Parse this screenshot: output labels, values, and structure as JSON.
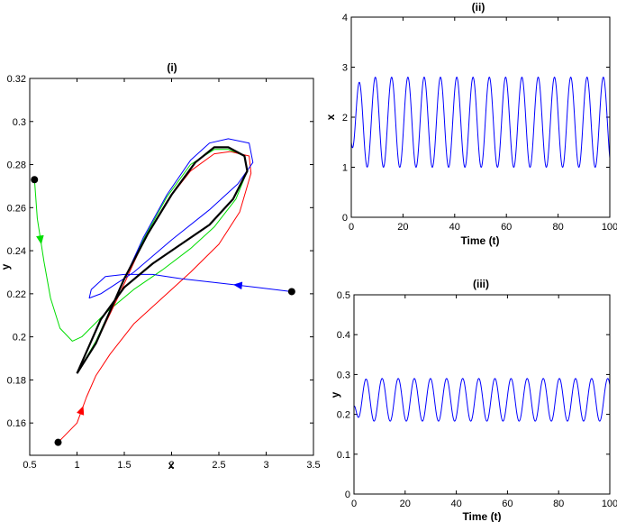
{
  "chart_data": [
    {
      "id": "i",
      "type": "line",
      "title": "(i)",
      "xlabel": "x",
      "ylabel": "y",
      "xlim": [
        0.5,
        3.5
      ],
      "ylim": [
        0.145,
        0.32
      ],
      "xticks": [
        "0.5",
        "1",
        "1.5",
        "2",
        "2.5",
        "3",
        "3.5"
      ],
      "yticks": [
        "0.16",
        "0.18",
        "0.2",
        "0.22",
        "0.24",
        "0.26",
        "0.28",
        "0.3",
        "0.32"
      ],
      "limit_cycle": {
        "color": "#000000",
        "points": [
          [
            1.0,
            0.183
          ],
          [
            1.25,
            0.208
          ],
          [
            1.5,
            0.223
          ],
          [
            1.8,
            0.234
          ],
          [
            2.1,
            0.243
          ],
          [
            2.4,
            0.252
          ],
          [
            2.65,
            0.264
          ],
          [
            2.8,
            0.277
          ],
          [
            2.77,
            0.284
          ],
          [
            2.6,
            0.288
          ],
          [
            2.45,
            0.288
          ],
          [
            2.25,
            0.281
          ],
          [
            2.0,
            0.266
          ],
          [
            1.75,
            0.248
          ],
          [
            1.5,
            0.227
          ],
          [
            1.2,
            0.197
          ],
          [
            1.0,
            0.183
          ]
        ]
      },
      "series": [
        {
          "color": "#00dd00",
          "start": [
            0.55,
            0.273
          ],
          "points": [
            [
              0.55,
              0.273
            ],
            [
              0.58,
              0.255
            ],
            [
              0.65,
              0.235
            ],
            [
              0.72,
              0.218
            ],
            [
              0.82,
              0.204
            ],
            [
              0.95,
              0.198
            ],
            [
              1.05,
              0.2
            ],
            [
              1.3,
              0.211
            ],
            [
              1.6,
              0.222
            ],
            [
              1.9,
              0.231
            ],
            [
              2.2,
              0.241
            ],
            [
              2.45,
              0.251
            ],
            [
              2.68,
              0.264
            ],
            [
              2.8,
              0.277
            ],
            [
              2.77,
              0.284
            ],
            [
              2.6,
              0.287
            ],
            [
              2.45,
              0.287
            ],
            [
              2.2,
              0.28
            ],
            [
              1.95,
              0.265
            ],
            [
              1.7,
              0.245
            ],
            [
              1.45,
              0.222
            ],
            [
              1.2,
              0.198
            ],
            [
              1.0,
              0.183
            ]
          ]
        },
        {
          "color": "#ff0000",
          "start": [
            0.8,
            0.151
          ],
          "points": [
            [
              0.8,
              0.151
            ],
            [
              1.0,
              0.16
            ],
            [
              1.1,
              0.172
            ],
            [
              1.2,
              0.182
            ],
            [
              1.35,
              0.192
            ],
            [
              1.6,
              0.206
            ],
            [
              1.9,
              0.218
            ],
            [
              2.2,
              0.23
            ],
            [
              2.5,
              0.243
            ],
            [
              2.72,
              0.258
            ],
            [
              2.84,
              0.276
            ],
            [
              2.82,
              0.284
            ],
            [
              2.62,
              0.286
            ],
            [
              2.45,
              0.285
            ],
            [
              2.2,
              0.277
            ],
            [
              1.95,
              0.263
            ],
            [
              1.7,
              0.244
            ],
            [
              1.45,
              0.22
            ],
            [
              1.2,
              0.197
            ],
            [
              1.0,
              0.183
            ]
          ]
        },
        {
          "color": "#0000ff",
          "start": [
            3.27,
            0.221
          ],
          "points": [
            [
              3.27,
              0.221
            ],
            [
              2.9,
              0.223
            ],
            [
              2.5,
              0.225
            ],
            [
              2.1,
              0.227
            ],
            [
              1.8,
              0.229
            ],
            [
              1.5,
              0.229
            ],
            [
              1.3,
              0.228
            ],
            [
              1.15,
              0.222
            ],
            [
              1.13,
              0.218
            ],
            [
              1.25,
              0.22
            ],
            [
              1.6,
              0.23
            ],
            [
              2.0,
              0.245
            ],
            [
              2.4,
              0.259
            ],
            [
              2.7,
              0.271
            ],
            [
              2.86,
              0.281
            ],
            [
              2.82,
              0.29
            ],
            [
              2.6,
              0.292
            ],
            [
              2.4,
              0.29
            ],
            [
              2.2,
              0.282
            ],
            [
              1.95,
              0.266
            ],
            [
              1.7,
              0.246
            ],
            [
              1.45,
              0.222
            ],
            [
              1.2,
              0.197
            ],
            [
              1.0,
              0.183
            ]
          ]
        }
      ]
    },
    {
      "id": "ii",
      "type": "line",
      "title": "(ii)",
      "xlabel": "Time (t)",
      "ylabel": "x",
      "xlim": [
        0,
        100
      ],
      "ylim": [
        0,
        4
      ],
      "xticks": [
        "0",
        "20",
        "40",
        "60",
        "80",
        "100"
      ],
      "yticks": [
        "0",
        "1",
        "2",
        "3",
        "4"
      ],
      "series": [
        {
          "color": "#0000ff",
          "t0": 0,
          "t1": 100,
          "period": 6.3,
          "phase": 3.0,
          "min": 1.0,
          "max": 2.8,
          "initial": 1.5
        }
      ]
    },
    {
      "id": "iii",
      "type": "line",
      "title": "(iii)",
      "xlabel": "Time (t)",
      "ylabel": "y",
      "xlim": [
        0,
        100
      ],
      "ylim": [
        0,
        0.5
      ],
      "xticks": [
        "0",
        "20",
        "40",
        "60",
        "80",
        "100"
      ],
      "yticks": [
        "0",
        "0.1",
        "0.2",
        "0.3",
        "0.4",
        "0.5"
      ],
      "series": [
        {
          "color": "#0000ff",
          "t0": 0,
          "t1": 100,
          "period": 6.3,
          "phase": 4.7,
          "min": 0.183,
          "max": 0.29,
          "initial": 0.22
        }
      ]
    }
  ]
}
